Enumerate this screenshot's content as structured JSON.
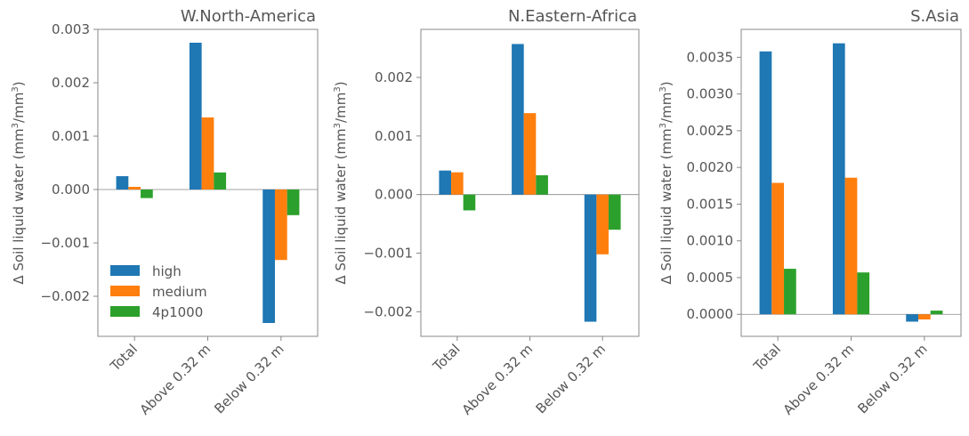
{
  "figure": {
    "ylabel_text": "Δ Soil liquid water (mm",
    "ylabel_unit_mid": "/mm",
    "ylabel_sup": "3",
    "ylabel_close": ")"
  },
  "chart_data": [
    {
      "type": "bar",
      "title": "W.North-America",
      "categories": [
        "Total",
        "Above 0.32 m",
        "Below 0.32 m"
      ],
      "ylabel": "Δ Soil liquid water (mm3/mm3)",
      "ylim": [
        -0.00275,
        0.003
      ],
      "yticks": [
        -0.002,
        -0.001,
        0.0,
        0.001,
        0.002,
        0.003
      ],
      "ytick_labels": [
        "−0.002",
        "−0.001",
        "0.000",
        "0.001",
        "0.002",
        "0.003"
      ],
      "legend": "lower-left",
      "series": [
        {
          "name": "high",
          "color": "#1f77b4",
          "values": [
            0.00025,
            0.00275,
            -0.0025
          ]
        },
        {
          "name": "medium",
          "color": "#ff7f0e",
          "values": [
            5e-05,
            0.00135,
            -0.00132
          ]
        },
        {
          "name": "4p1000",
          "color": "#2ca02c",
          "values": [
            -0.00016,
            0.00032,
            -0.00048
          ]
        }
      ]
    },
    {
      "type": "bar",
      "title": "N.Eastern-Africa",
      "categories": [
        "Total",
        "Above 0.32 m",
        "Below 0.32 m"
      ],
      "ylabel": "Δ Soil liquid water (mm3/mm3)",
      "ylim": [
        -0.00242,
        0.00282
      ],
      "yticks": [
        -0.002,
        -0.001,
        0.0,
        0.001,
        0.002
      ],
      "ytick_labels": [
        "−0.002",
        "−0.001",
        "0.000",
        "0.001",
        "0.002"
      ],
      "series": [
        {
          "name": "high",
          "color": "#1f77b4",
          "values": [
            0.00041,
            0.00257,
            -0.00217
          ]
        },
        {
          "name": "medium",
          "color": "#ff7f0e",
          "values": [
            0.00038,
            0.00139,
            -0.00102
          ]
        },
        {
          "name": "4p1000",
          "color": "#2ca02c",
          "values": [
            -0.00027,
            0.00033,
            -0.0006
          ]
        }
      ]
    },
    {
      "type": "bar",
      "title": "S.Asia",
      "categories": [
        "Total",
        "Above 0.32 m",
        "Below 0.32 m"
      ],
      "ylabel": "Δ Soil liquid water (mm3/mm3)",
      "ylim": [
        -0.0003,
        0.00388
      ],
      "yticks": [
        0.0,
        0.0005,
        0.001,
        0.0015,
        0.002,
        0.0025,
        0.003,
        0.0035
      ],
      "ytick_labels": [
        "0.0000",
        "0.0005",
        "0.0010",
        "0.0015",
        "0.0020",
        "0.0025",
        "0.0030",
        "0.0035"
      ],
      "series": [
        {
          "name": "high",
          "color": "#1f77b4",
          "values": [
            0.00358,
            0.00369,
            -0.0001
          ]
        },
        {
          "name": "medium",
          "color": "#ff7f0e",
          "values": [
            0.00179,
            0.00186,
            -7e-05
          ]
        },
        {
          "name": "4p1000",
          "color": "#2ca02c",
          "values": [
            0.00062,
            0.00057,
            5e-05
          ]
        }
      ]
    }
  ]
}
